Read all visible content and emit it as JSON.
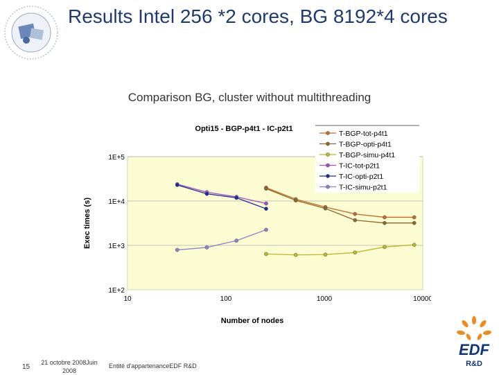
{
  "slide": {
    "title": "Results Intel 256 *2 cores, BG 8192*4 cores",
    "subtitle": "Comparison BG, cluster without multithreading",
    "footer": {
      "page_number": "15",
      "date": "21 octobre 2008Juin 2008",
      "entity": "Entité d'appartenanceEDF R&D"
    },
    "logo": {
      "brand": "EDF",
      "sub": "R&D"
    }
  },
  "chart_data": {
    "type": "line",
    "title": "Opti15 - BGP-p4t1 - IC-p2t1",
    "xlabel": "Number of nodes",
    "ylabel": "Exec times (s)",
    "x_scale": "log",
    "y_scale": "log",
    "xlim": [
      10,
      10000
    ],
    "ylim": [
      100,
      100000
    ],
    "x_ticks": [
      "10",
      "100",
      "1000",
      "10000"
    ],
    "y_ticks": [
      "1E+2",
      "1E+3",
      "1E+4",
      "1E+5"
    ],
    "legend_position": "top-right",
    "series": [
      {
        "name": "T-BGP-tot-p4t1",
        "color": "#c56a2a",
        "marker": "circle",
        "x": [
          256,
          512,
          1024,
          2048,
          4096,
          8192
        ],
        "y": [
          20000,
          11000,
          7300,
          5100,
          4300,
          4300
        ]
      },
      {
        "name": "T-BGP-opti-p4t1",
        "color": "#8a6a2a",
        "marker": "circle",
        "x": [
          256,
          512,
          1024,
          2048,
          4096,
          8192
        ],
        "y": [
          19000,
          10300,
          6800,
          3700,
          3200,
          3200
        ]
      },
      {
        "name": "T-BGP-simu-p4t1",
        "color": "#b9b92a",
        "marker": "circle",
        "x": [
          256,
          512,
          1024,
          2048,
          4096,
          8192
        ],
        "y": [
          640,
          610,
          620,
          690,
          920,
          1030
        ]
      },
      {
        "name": "T-IC-tot-p2t1",
        "color": "#9b4fc8",
        "marker": "circle",
        "x": [
          32,
          64,
          128,
          256
        ],
        "y": [
          24000,
          15800,
          12400,
          8800
        ]
      },
      {
        "name": "T-IC-opti-p2t1",
        "color": "#1e2a9b",
        "marker": "circle",
        "x": [
          32,
          64,
          128,
          256
        ],
        "y": [
          23000,
          14500,
          11800,
          6700
        ]
      },
      {
        "name": "T-IC-simu-p2t1",
        "color": "#8a82c8",
        "marker": "circle",
        "x": [
          32,
          64,
          128,
          256
        ],
        "y": [
          790,
          900,
          1280,
          2250
        ]
      }
    ],
    "colors": {
      "plot_background": "#fcfcd2",
      "page_background": "#ffffff"
    }
  }
}
